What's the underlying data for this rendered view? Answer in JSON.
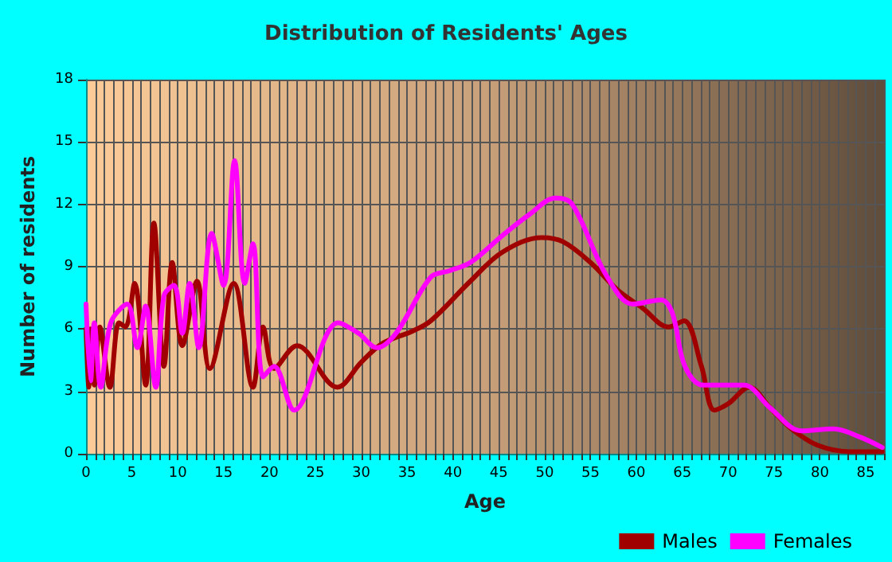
{
  "chart_data": {
    "type": "line",
    "title": "Distribution of Residents' Ages",
    "xlabel": "Age",
    "ylabel": "Number of residents",
    "xlim": [
      0,
      87
    ],
    "xticks": [
      0,
      5,
      10,
      15,
      20,
      25,
      30,
      35,
      40,
      45,
      50,
      55,
      60,
      65,
      70,
      75,
      80,
      85
    ],
    "ylim": [
      0,
      18
    ],
    "yticks": [
      0,
      3,
      6,
      9,
      12,
      15,
      18
    ],
    "grid": true,
    "legend": "bottom right",
    "marker": "none",
    "line_style": "solid",
    "series": [
      {
        "name": "Males",
        "color": "#a00000",
        "x": [
          0,
          0.3,
          0.5,
          0.9,
          1.5,
          2.6,
          3.6,
          4.3,
          5.3,
          6.5,
          7.4,
          8.5,
          9.4,
          10.5,
          12.1,
          13.5,
          16.1,
          18.2,
          19.3,
          20.5,
          23,
          27.4,
          30,
          32.3,
          35.6,
          37.6,
          41.9,
          45.4,
          49.7,
          52,
          55,
          57.9,
          60.7,
          63.5,
          65.2,
          67.1,
          68.5,
          70,
          72.3,
          74.6,
          76.9,
          79.8,
          83.3,
          86.8
        ],
        "values": [
          6,
          3.2,
          6,
          3.3,
          6.1,
          3.2,
          6.3,
          6.1,
          8.2,
          3.3,
          11.1,
          4.2,
          9.2,
          5.2,
          8.3,
          4.1,
          8.2,
          3.2,
          6.1,
          4.1,
          5.2,
          3.2,
          4.4,
          5.3,
          5.9,
          6.4,
          8.3,
          9.7,
          10.4,
          10.2,
          9.2,
          7.9,
          7,
          6.1,
          6.4,
          4.2,
          2.1,
          2.4,
          3.2,
          2.2,
          1.2,
          0.4,
          0.1,
          0.1
        ]
      },
      {
        "name": "Females",
        "color": "#ff00ff",
        "x": [
          0,
          0.5,
          0.9,
          1.6,
          2.7,
          4.5,
          5.6,
          6.5,
          7.6,
          8.5,
          9.6,
          10.5,
          11.3,
          12.3,
          13.7,
          15,
          16.2,
          17.3,
          18.2,
          19.3,
          20.5,
          22.7,
          27.5,
          29.7,
          31.7,
          33.8,
          37.6,
          39.6,
          41.9,
          45.4,
          48.3,
          51.2,
          53,
          56.7,
          59.6,
          62.7,
          63.9,
          65.3,
          67.3,
          71.7,
          74.6,
          78,
          81.5,
          84.4,
          86.8
        ],
        "values": [
          7.2,
          3.5,
          6.3,
          3.2,
          6.3,
          7.2,
          5.1,
          7.1,
          3.2,
          7.6,
          8.1,
          5.8,
          8.2,
          5.1,
          10.6,
          8.1,
          14.1,
          8.2,
          10.1,
          3.7,
          4.2,
          2.1,
          6.3,
          5.8,
          5.1,
          5.8,
          8.5,
          8.8,
          9.2,
          10.5,
          11.5,
          12.3,
          12,
          8.6,
          7.2,
          7.4,
          6.8,
          4.2,
          3.3,
          3.3,
          2.2,
          1.1,
          1.2,
          0.8,
          0.3
        ]
      }
    ]
  }
}
